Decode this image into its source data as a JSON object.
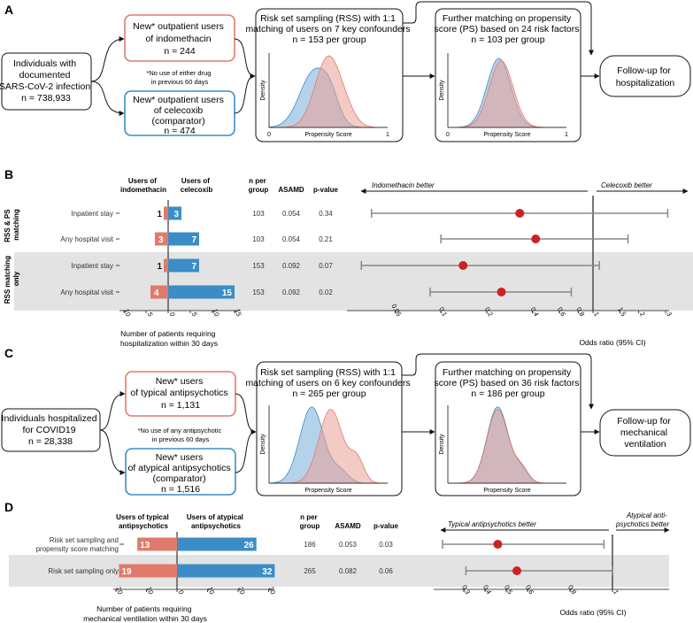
{
  "panel_a": {
    "letter": "A",
    "source_lines": [
      "Individuals with",
      "documented",
      "SARS-CoV-2 infection",
      "n = 738,933"
    ],
    "exposure_lines": [
      "New* outpatient users",
      "of indomethacin",
      "n = 244"
    ],
    "comparator_lines": [
      "New* outpatient users",
      "of celecoxib",
      "(comparator)",
      "n = 474"
    ],
    "footnote_lines": [
      "*No use of either drug",
      "in previous 60 days"
    ],
    "rss_lines": [
      "Risk set sampling (RSS) with 1:1",
      "matching of users on 7 key confounders",
      "n = 153 per group"
    ],
    "ps_lines": [
      "Further matching on propensity",
      "score (PS) based on 24 risk factors",
      "n = 103 per group"
    ],
    "outcome_lines": [
      "Follow-up for",
      "hospitalization"
    ],
    "density_label": "Density",
    "xaxis_label": "Propensity Score",
    "tick_min": "0",
    "tick_max": "1"
  },
  "panel_b": {
    "letter": "B",
    "col_exposure": [
      "Users of",
      "indomethacin"
    ],
    "col_comparator": [
      "Users of",
      "celecoxib"
    ],
    "col_n": [
      "n per",
      "group"
    ],
    "col_asamd": "ASAMD",
    "col_p": "p-value",
    "group_labels": [
      [
        "RSS & PS",
        "matching"
      ],
      [
        "RSS matching",
        "only"
      ]
    ],
    "rows": [
      {
        "label": "Inpatient stay",
        "exposure": 1,
        "comparator": 3,
        "n": "103",
        "asamd": "0.054",
        "p": "0.34",
        "or": 0.33,
        "lo": 0.035,
        "hi": 3.1
      },
      {
        "label": "Any hospital visit",
        "exposure": 3,
        "comparator": 7,
        "n": "103",
        "asamd": "0.054",
        "p": "0.21",
        "or": 0.42,
        "lo": 0.1,
        "hi": 1.7
      },
      {
        "label": "Inpatient stay",
        "exposure": 1,
        "comparator": 7,
        "n": "153",
        "asamd": "0.092",
        "p": "0.07",
        "or": 0.14,
        "lo": 0.03,
        "hi": 1.1
      },
      {
        "label": "Any hospital visit",
        "exposure": 4,
        "comparator": 15,
        "n": "153",
        "asamd": "0.092",
        "p": "0.02",
        "or": 0.25,
        "lo": 0.085,
        "hi": 0.72
      }
    ],
    "bar_ticks": [
      "10",
      "5",
      "0",
      "5",
      "10",
      "15"
    ],
    "bar_axis_lines": [
      "Number of patients requiring",
      "hospitalization within 30 days"
    ],
    "better_left": "Indomethacin better",
    "better_right": "Celecoxib better",
    "or_ticks": [
      "0.05",
      "0.1",
      "0.2",
      "0.4",
      "0.6",
      "0.8",
      "1",
      "1.5",
      "2",
      "3"
    ],
    "or_axis_label": "Odds ratio (95% CI)"
  },
  "panel_c": {
    "letter": "C",
    "source_lines": [
      "Individuals hospitalized",
      "for COVID19",
      "n = 28,338"
    ],
    "exposure_lines": [
      "New* users",
      "of typical antipsychotics",
      "n = 1,131"
    ],
    "comparator_lines": [
      "New* users",
      "of atypical antipsychotics",
      "(comparator)",
      "n = 1,516"
    ],
    "footnote_lines": [
      "*No use of any antipsychotic",
      "in previous 60 days"
    ],
    "rss_lines": [
      "Risk set sampling (RSS) with 1:1",
      "matching of users on 6 key confounders",
      "n = 265 per group"
    ],
    "ps_lines": [
      "Further matching on propensity",
      "score (PS) based on 36 risk factors",
      "n = 186 per group"
    ],
    "outcome_lines": [
      "Follow-up for",
      "mechanical",
      "ventilation"
    ],
    "density_label": "Density",
    "xaxis_label": "Propensity Score"
  },
  "panel_d": {
    "letter": "D",
    "col_exposure": [
      "Users of typical",
      "antipsychotics"
    ],
    "col_comparator": [
      "Users of atypical",
      "antipsychotics"
    ],
    "col_n": [
      "n per",
      "group"
    ],
    "col_asamd": "ASAMD",
    "col_p": "p-value",
    "rows": [
      {
        "label_lines": [
          "Risk set sampling and",
          "propensity score matching"
        ],
        "exposure": 13,
        "comparator": 26,
        "n": "186",
        "asamd": "0.053",
        "p": "0.03",
        "or": 0.46,
        "lo": 0.2,
        "hi": 0.96
      },
      {
        "label_lines": [
          "Risk set sampling only"
        ],
        "exposure": 19,
        "comparator": 32,
        "n": "265",
        "asamd": "0.082",
        "p": "0.06",
        "or": 0.55,
        "lo": 0.31,
        "hi": 1.0
      }
    ],
    "bar_ticks": [
      "20",
      "10",
      "0",
      "10",
      "20",
      "30"
    ],
    "bar_axis_lines": [
      "Number of patients requiring",
      "mechanical ventilation within 30 days"
    ],
    "better_left": "Typical antipsychotics better",
    "better_right_lines": [
      "Atypical anti-",
      "psychotics better"
    ],
    "or_ticks": [
      "0.3",
      "0.4",
      "0.5",
      "0.6",
      "0.8",
      "1",
      "1.5"
    ],
    "or_axis_label": "Odds ratio (95% CI)"
  },
  "colors": {
    "exposure": "#e07b6c",
    "exposure_fill": "#e8a196",
    "comparator": "#3c8dc5",
    "comparator_fill": "#9cc3e4",
    "overlap_fill": "#c6b6cf",
    "point": "#cc2222",
    "ci": "#888888",
    "band": "#e3e3e3"
  },
  "chart_data": [
    {
      "type": "bar",
      "title": "Users of indomethacin vs users of celecoxib",
      "xlabel": "Number of patients requiring hospitalization within 30 days",
      "categories": [
        "RSS & PS matching: Inpatient stay",
        "RSS & PS matching: Any hospital visit",
        "RSS matching only: Inpatient stay",
        "RSS matching only: Any hospital visit"
      ],
      "series": [
        {
          "name": "Users of indomethacin",
          "values": [
            1,
            3,
            1,
            4
          ]
        },
        {
          "name": "Users of celecoxib",
          "values": [
            3,
            7,
            7,
            15
          ]
        }
      ],
      "xlim": [
        -10,
        15
      ]
    },
    {
      "type": "scatter",
      "title": "Odds ratio (95% CI)",
      "xscale": "log",
      "xlim": [
        0.03,
        3.2
      ],
      "categories": [
        "Inpatient stay (RSS & PS)",
        "Any hospital visit (RSS & PS)",
        "Inpatient stay (RSS only)",
        "Any hospital visit (RSS only)"
      ],
      "or": [
        0.33,
        0.42,
        0.14,
        0.25
      ],
      "ci_low": [
        0.035,
        0.1,
        0.03,
        0.085
      ],
      "ci_high": [
        3.1,
        1.7,
        1.1,
        0.72
      ]
    },
    {
      "type": "bar",
      "title": "Users of typical antipsychotics vs users of atypical antipsychotics",
      "xlabel": "Number of patients requiring mechanical ventilation within 30 days",
      "categories": [
        "Risk set sampling and propensity score matching",
        "Risk set sampling only"
      ],
      "series": [
        {
          "name": "Users of typical antipsychotics",
          "values": [
            13,
            19
          ]
        },
        {
          "name": "Users of atypical antipsychotics",
          "values": [
            26,
            32
          ]
        }
      ],
      "xlim": [
        -20,
        30
      ]
    },
    {
      "type": "scatter",
      "title": "Odds ratio (95% CI)",
      "xscale": "linear",
      "xlim": [
        0.2,
        1.6
      ],
      "categories": [
        "Risk set sampling and propensity score matching",
        "Risk set sampling only"
      ],
      "or": [
        0.46,
        0.55
      ],
      "ci_low": [
        0.2,
        0.31
      ],
      "ci_high": [
        0.96,
        1.0
      ]
    }
  ]
}
